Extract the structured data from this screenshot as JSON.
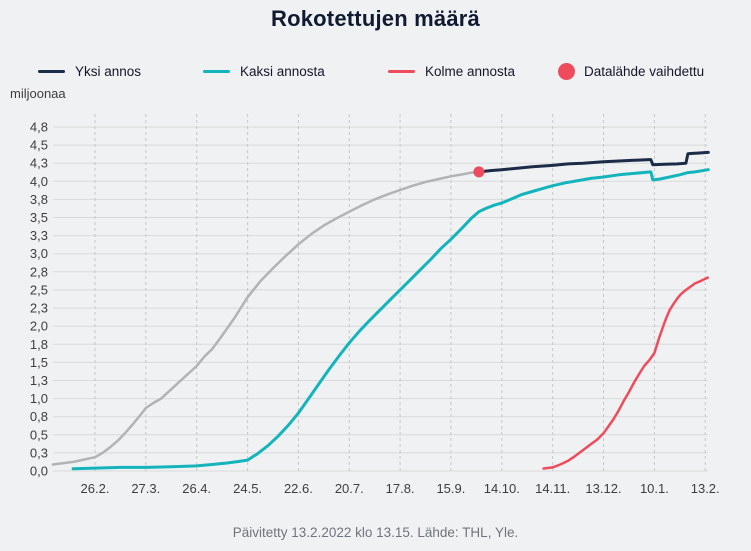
{
  "title": "Rokotettujen määrä",
  "footer": {
    "text": "Päivitetty 13.2.2022 klo 13.15. Lähde: THL, Yle."
  },
  "legend": {
    "items": [
      {
        "label": "Yksi annos",
        "color": "#1c2b47",
        "type": "line"
      },
      {
        "label": "Kaksi annosta",
        "color": "#14b4bc",
        "type": "line"
      },
      {
        "label": "Kolme annosta",
        "color": "#ee4c5d",
        "type": "line"
      },
      {
        "label": "Datalähde vaihdettu",
        "color": "#ee4c5d",
        "type": "dot"
      }
    ]
  },
  "colors": {
    "background": "#f0f1f2",
    "grid": "#d9dadb",
    "grid_dashed": "#c6c7c9",
    "tick_text": "#3d3d3d",
    "title": "#101b31",
    "footer_text": "#70757b",
    "one_dose_old_source": "#b1b3b5",
    "one_dose": "#1c2b47",
    "two_doses": "#14b4bc",
    "three_doses": "#ee4c5d"
  },
  "chart_data": {
    "type": "line",
    "title": "Rokotettujen määrä",
    "ylabel": "miljoonaa",
    "xlabel": "",
    "ylim": [
      0,
      4.75
    ],
    "grid": "horizontal solid, vertical dashed",
    "legend_position": "top",
    "x_unit": "tick index: 0 = 26.2.2021 ... 12 = 13.2.2022, values in millions of people",
    "x_ticks": {
      "labels": [
        "26.2.",
        "27.3.",
        "26.4.",
        "24.5.",
        "22.6.",
        "20.7.",
        "17.8.",
        "15.9.",
        "14.10.",
        "14.11.",
        "13.12.",
        "10.1.",
        "13.2."
      ]
    },
    "y_ticks": {
      "labels": [
        "0,0",
        "0,3",
        "0,5",
        "0,8",
        "1,0",
        "1,3",
        "1,5",
        "1,8",
        "2,0",
        "2,3",
        "2,5",
        "2,8",
        "3,0",
        "3,3",
        "3,5",
        "3,8",
        "4,0",
        "4,3",
        "4,5",
        "4,8"
      ],
      "values": [
        0,
        0.25,
        0.5,
        0.75,
        1,
        1.25,
        1.5,
        1.75,
        2,
        2.25,
        2.5,
        2.75,
        3,
        3.25,
        3.5,
        3.75,
        4,
        4.25,
        4.5,
        4.75
      ]
    },
    "series": [
      {
        "name": "Yksi annos (vanha datalähde)",
        "color": "#b1b3b5",
        "width": 2.5,
        "points": [
          [
            -0.83,
            0.09
          ],
          [
            -0.6,
            0.11
          ],
          [
            -0.4,
            0.13
          ],
          [
            -0.2,
            0.16
          ],
          [
            0,
            0.19
          ],
          [
            0.15,
            0.25
          ],
          [
            0.3,
            0.33
          ],
          [
            0.45,
            0.42
          ],
          [
            0.6,
            0.53
          ],
          [
            0.75,
            0.65
          ],
          [
            0.9,
            0.78
          ],
          [
            1,
            0.87
          ],
          [
            1.15,
            0.94
          ],
          [
            1.3,
            1.0
          ],
          [
            1.5,
            1.13
          ],
          [
            1.75,
            1.29
          ],
          [
            2,
            1.45
          ],
          [
            2.15,
            1.58
          ],
          [
            2.3,
            1.68
          ],
          [
            2.5,
            1.87
          ],
          [
            2.75,
            2.12
          ],
          [
            3,
            2.4
          ],
          [
            3.25,
            2.62
          ],
          [
            3.5,
            2.8
          ],
          [
            3.75,
            2.97
          ],
          [
            4,
            3.13
          ],
          [
            4.25,
            3.27
          ],
          [
            4.5,
            3.39
          ],
          [
            4.75,
            3.49
          ],
          [
            5,
            3.58
          ],
          [
            5.25,
            3.67
          ],
          [
            5.5,
            3.75
          ],
          [
            5.75,
            3.82
          ],
          [
            6,
            3.88
          ],
          [
            6.25,
            3.94
          ],
          [
            6.5,
            3.99
          ],
          [
            6.75,
            4.03
          ],
          [
            7,
            4.07
          ],
          [
            7.25,
            4.1
          ],
          [
            7.4,
            4.12
          ],
          [
            7.55,
            4.13
          ]
        ]
      },
      {
        "name": "Yksi annos",
        "color": "#1c2b47",
        "width": 3,
        "points": [
          [
            7.55,
            4.13
          ],
          [
            7.8,
            4.15
          ],
          [
            8,
            4.16
          ],
          [
            8.3,
            4.18
          ],
          [
            8.6,
            4.2
          ],
          [
            9,
            4.22
          ],
          [
            9.3,
            4.24
          ],
          [
            9.6,
            4.25
          ],
          [
            10,
            4.27
          ],
          [
            10.3,
            4.28
          ],
          [
            10.6,
            4.29
          ],
          [
            10.9,
            4.3
          ],
          [
            10.93,
            4.3
          ],
          [
            10.97,
            4.23
          ],
          [
            11.2,
            4.235
          ],
          [
            11.45,
            4.24
          ],
          [
            11.62,
            4.25
          ],
          [
            11.66,
            4.38
          ],
          [
            11.75,
            4.385
          ],
          [
            11.85,
            4.39
          ],
          [
            12.06,
            4.4
          ]
        ]
      },
      {
        "name": "Kaksi annosta",
        "color": "#14b4bc",
        "width": 3,
        "points": [
          [
            -0.43,
            0.03
          ],
          [
            0,
            0.04
          ],
          [
            0.5,
            0.05
          ],
          [
            1,
            0.05
          ],
          [
            1.5,
            0.06
          ],
          [
            2,
            0.07
          ],
          [
            2.3,
            0.09
          ],
          [
            2.6,
            0.11
          ],
          [
            2.8,
            0.13
          ],
          [
            3,
            0.15
          ],
          [
            3.2,
            0.24
          ],
          [
            3.4,
            0.35
          ],
          [
            3.6,
            0.48
          ],
          [
            3.8,
            0.63
          ],
          [
            4,
            0.8
          ],
          [
            4.2,
            1.0
          ],
          [
            4.4,
            1.2
          ],
          [
            4.6,
            1.4
          ],
          [
            4.8,
            1.59
          ],
          [
            5,
            1.77
          ],
          [
            5.2,
            1.93
          ],
          [
            5.4,
            2.08
          ],
          [
            5.6,
            2.22
          ],
          [
            5.8,
            2.36
          ],
          [
            6,
            2.5
          ],
          [
            6.2,
            2.64
          ],
          [
            6.4,
            2.78
          ],
          [
            6.6,
            2.92
          ],
          [
            6.8,
            3.07
          ],
          [
            7,
            3.2
          ],
          [
            7.2,
            3.34
          ],
          [
            7.4,
            3.49
          ],
          [
            7.55,
            3.58
          ],
          [
            7.7,
            3.63
          ],
          [
            7.85,
            3.67
          ],
          [
            8,
            3.7
          ],
          [
            8.2,
            3.76
          ],
          [
            8.4,
            3.82
          ],
          [
            8.6,
            3.86
          ],
          [
            8.8,
            3.9
          ],
          [
            9,
            3.94
          ],
          [
            9.25,
            3.98
          ],
          [
            9.5,
            4.01
          ],
          [
            9.75,
            4.04
          ],
          [
            10,
            4.06
          ],
          [
            10.3,
            4.09
          ],
          [
            10.6,
            4.11
          ],
          [
            10.93,
            4.13
          ],
          [
            10.97,
            4.02
          ],
          [
            11.1,
            4.03
          ],
          [
            11.3,
            4.06
          ],
          [
            11.5,
            4.09
          ],
          [
            11.66,
            4.12
          ],
          [
            11.8,
            4.13
          ],
          [
            12.06,
            4.16
          ]
        ]
      },
      {
        "name": "Kolme annosta",
        "color": "#ee4c5d",
        "width": 2.5,
        "points": [
          [
            8.82,
            0.035
          ],
          [
            9,
            0.05
          ],
          [
            9.15,
            0.09
          ],
          [
            9.3,
            0.14
          ],
          [
            9.45,
            0.21
          ],
          [
            9.6,
            0.29
          ],
          [
            9.75,
            0.37
          ],
          [
            9.87,
            0.43
          ],
          [
            10,
            0.52
          ],
          [
            10.1,
            0.62
          ],
          [
            10.2,
            0.72
          ],
          [
            10.3,
            0.84
          ],
          [
            10.4,
            0.97
          ],
          [
            10.5,
            1.09
          ],
          [
            10.6,
            1.22
          ],
          [
            10.7,
            1.34
          ],
          [
            10.8,
            1.45
          ],
          [
            10.9,
            1.53
          ],
          [
            11,
            1.63
          ],
          [
            11.05,
            1.74
          ],
          [
            11.1,
            1.85
          ],
          [
            11.15,
            1.95
          ],
          [
            11.2,
            2.05
          ],
          [
            11.25,
            2.14
          ],
          [
            11.3,
            2.22
          ],
          [
            11.38,
            2.31
          ],
          [
            11.45,
            2.38
          ],
          [
            11.52,
            2.44
          ],
          [
            11.6,
            2.49
          ],
          [
            11.7,
            2.54
          ],
          [
            11.8,
            2.59
          ],
          [
            11.9,
            2.62
          ],
          [
            12.05,
            2.67
          ]
        ]
      }
    ],
    "marker": {
      "label": "Datalähde vaihdettu",
      "color": "#ee4c5d",
      "x": 7.55,
      "value": 4.13
    }
  }
}
